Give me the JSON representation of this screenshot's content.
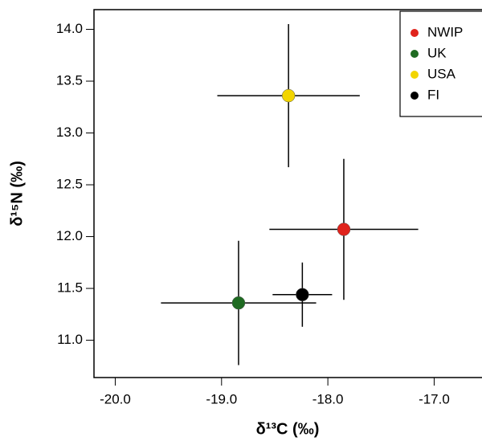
{
  "chart_data": {
    "type": "scatter",
    "x_label": "δ¹³C (‰)",
    "y_label": "δ¹⁵N (‰)",
    "xlim": [
      -20.2,
      -16.55
    ],
    "ylim": [
      10.64,
      14.19
    ],
    "xticks": [
      {
        "value": -20,
        "label": "-20.0"
      },
      {
        "value": -19,
        "label": "-19.0"
      },
      {
        "value": -18,
        "label": "-18.0"
      },
      {
        "value": -17,
        "label": "-17.0"
      }
    ],
    "yticks": [
      {
        "value": 11,
        "label": "11.0"
      },
      11.5,
      {
        "value": 12,
        "label": "12.0"
      },
      12.5,
      {
        "value": 13,
        "label": "13.0"
      },
      13.5,
      {
        "value": 14,
        "label": "14.0"
      }
    ],
    "legend": "upper right",
    "series": [
      {
        "name": "NWIP",
        "color": "#e0231c",
        "x": [
          -17.85
        ],
        "values": [
          12.07
        ],
        "xerr": [
          0.7
        ],
        "yerr": [
          0.68
        ]
      },
      {
        "name": "UK",
        "color": "#1f6b22",
        "x": [
          -18.84
        ],
        "values": [
          11.36
        ],
        "xerr": [
          0.73
        ],
        "yerr": [
          0.6
        ]
      },
      {
        "name": "USA",
        "color": "#f2d500",
        "x": [
          -18.37
        ],
        "values": [
          13.36
        ],
        "xerr": [
          0.67
        ],
        "yerr": [
          0.69
        ]
      },
      {
        "name": "FI",
        "color": "#000000",
        "x": [
          -18.24
        ],
        "values": [
          11.44
        ],
        "xerr": [
          0.28
        ],
        "yerr": [
          0.31
        ]
      }
    ]
  }
}
